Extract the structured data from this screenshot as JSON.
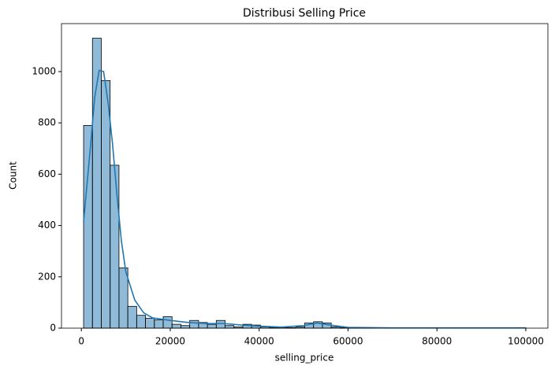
{
  "chart_data": {
    "type": "histogram",
    "title": "Distribusi Selling Price",
    "xlabel": "selling_price",
    "ylabel": "Count",
    "bins": [
      500,
      2490,
      4480,
      6470,
      8460,
      10450,
      12440,
      14430,
      16420,
      18410,
      20400,
      22390,
      24380,
      26370,
      28360,
      30350,
      32340,
      34330,
      36320,
      38310,
      40300,
      42290,
      44280,
      46270,
      48260,
      50250,
      52240,
      54230,
      56220,
      58210,
      60200,
      62190,
      64180,
      66170,
      68160,
      70150,
      72140,
      74130,
      76120,
      78110,
      80100,
      82090,
      84080,
      86070,
      88060,
      90050,
      92040,
      94030,
      96020,
      98010,
      100000
    ],
    "counts": [
      790,
      1130,
      965,
      635,
      235,
      85,
      50,
      38,
      32,
      45,
      15,
      10,
      30,
      22,
      15,
      30,
      10,
      5,
      15,
      12,
      5,
      3,
      3,
      2,
      5,
      20,
      25,
      20,
      5,
      2,
      1,
      1,
      1,
      0,
      1,
      0,
      1,
      0,
      0,
      1,
      0,
      1,
      0,
      0,
      0,
      1,
      0,
      0,
      0,
      2
    ],
    "color": "#1f77b4",
    "kde": {
      "x": [
        500,
        2000,
        3000,
        4000,
        5000,
        6000,
        7000,
        8000,
        9000,
        10000,
        12000,
        14000,
        16000,
        18000,
        20000,
        24000,
        28000,
        32000,
        36000,
        40000,
        45000,
        50000,
        53000,
        56000,
        60000,
        70000,
        80000,
        100000
      ],
      "y": [
        415,
        700,
        900,
        1005,
        1000,
        880,
        720,
        520,
        340,
        220,
        110,
        60,
        40,
        35,
        30,
        22,
        18,
        18,
        12,
        8,
        4,
        10,
        20,
        12,
        3,
        1,
        1,
        1
      ]
    },
    "xlim": [
      -4475,
      104975
    ],
    "ylim": [
      0,
      1187
    ],
    "xticks": [
      0,
      20000,
      40000,
      60000,
      80000,
      100000
    ],
    "yticks": [
      0,
      200,
      400,
      600,
      800,
      1000
    ]
  }
}
